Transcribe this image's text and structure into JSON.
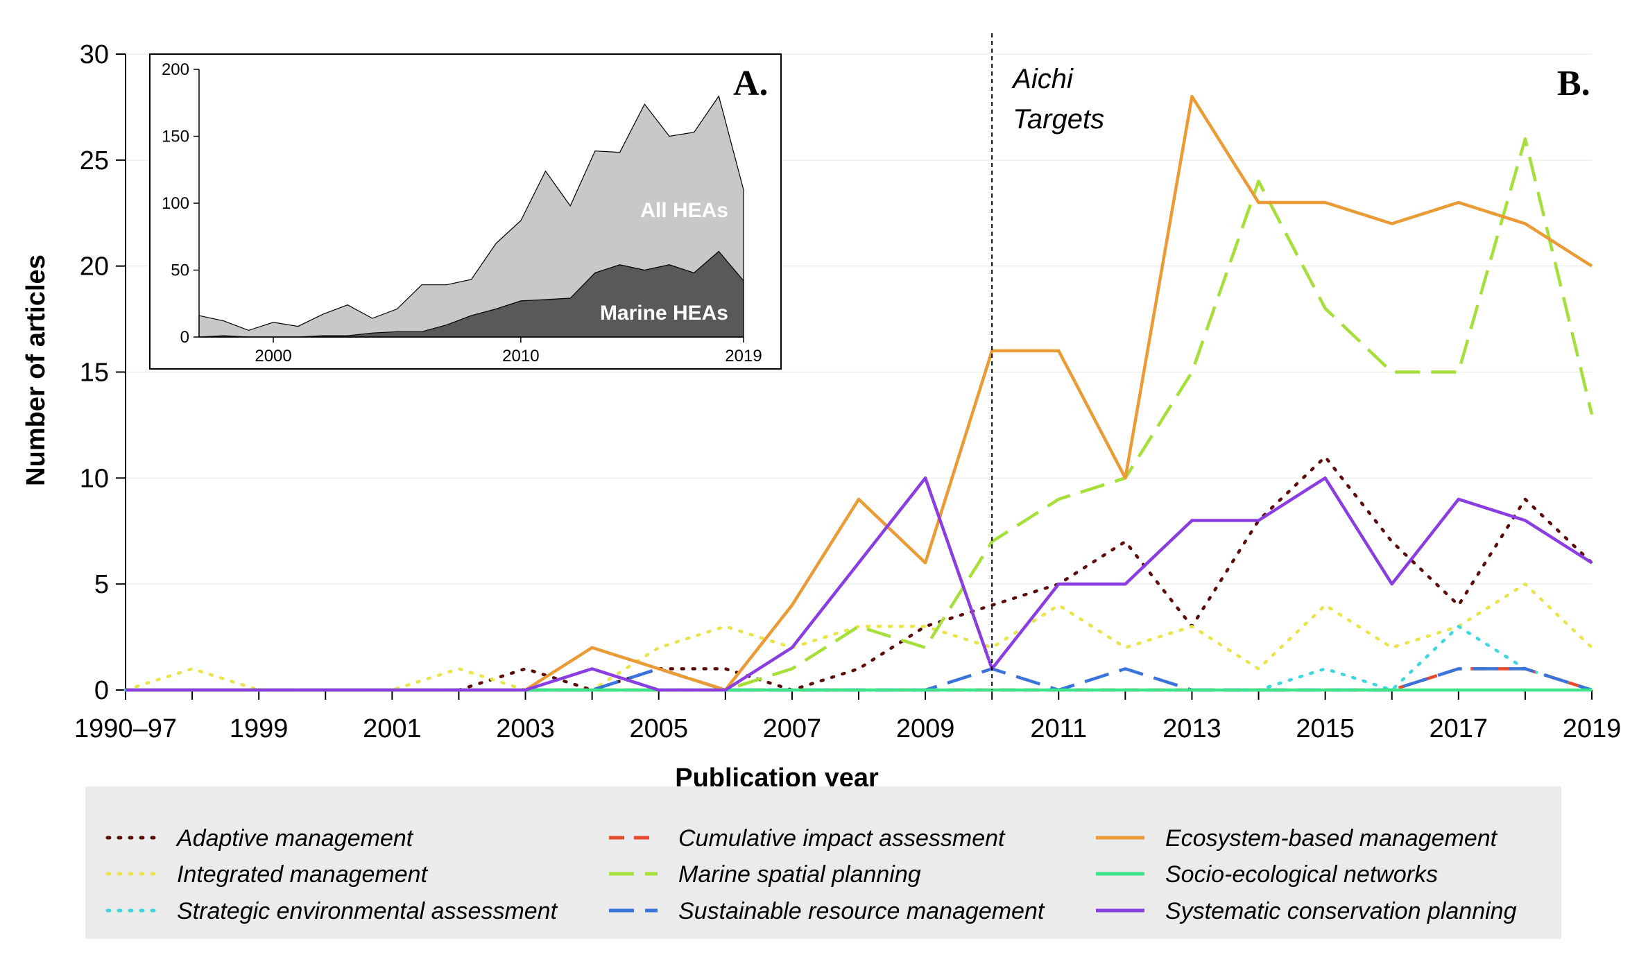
{
  "chart_data": [
    {
      "type": "line",
      "panel_label": "B.",
      "xlabel": "Publication year",
      "ylabel": "Number of articles",
      "ylim": [
        0,
        30
      ],
      "yticks": [
        0,
        5,
        10,
        15,
        20,
        25,
        30
      ],
      "categories": [
        "1990–97",
        "1998",
        "1999",
        "2000",
        "2001",
        "2002",
        "2003",
        "2004",
        "2005",
        "2006",
        "2007",
        "2008",
        "2009",
        "2010",
        "2011",
        "2012",
        "2013",
        "2014",
        "2015",
        "2016",
        "2017",
        "2018",
        "2019"
      ],
      "xtick_labels": [
        "1990–97",
        "1999",
        "2001",
        "2003",
        "2005",
        "2007",
        "2009",
        "2011",
        "2013",
        "2015",
        "2017",
        "2019"
      ],
      "xtick_indices": [
        0,
        2,
        4,
        6,
        8,
        10,
        12,
        14,
        16,
        18,
        20,
        22
      ],
      "annotation": {
        "text_line1": "Aichi",
        "text_line2": "Targets",
        "at_category": "2010"
      },
      "legend_position": "bottom",
      "series": [
        {
          "name": "Adaptive management",
          "color": "#5c0a0a",
          "dash": "dotted",
          "values": [
            0,
            0,
            0,
            0,
            0,
            0,
            1,
            0,
            1,
            1,
            0,
            1,
            3,
            4,
            5,
            7,
            3,
            8,
            11,
            7,
            4,
            9,
            6
          ]
        },
        {
          "name": "Integrated management",
          "color": "#e8e44a",
          "dash": "dotted",
          "values": [
            0,
            1,
            0,
            0,
            0,
            1,
            0,
            0,
            2,
            3,
            2,
            3,
            3,
            2,
            4,
            2,
            3,
            1,
            4,
            2,
            3,
            5,
            2
          ]
        },
        {
          "name": "Strategic environmental assessment",
          "color": "#3ed7e0",
          "dash": "dotted",
          "values": [
            0,
            0,
            0,
            0,
            0,
            0,
            0,
            0,
            0,
            0,
            0,
            0,
            0,
            0,
            0,
            0,
            0,
            0,
            1,
            0,
            3,
            1,
            0
          ]
        },
        {
          "name": "Cumulative impact assessment",
          "color": "#e64a2e",
          "dash": "dashed",
          "values": [
            0,
            0,
            0,
            0,
            0,
            0,
            0,
            0,
            0,
            0,
            0,
            0,
            0,
            0,
            0,
            0,
            0,
            0,
            0,
            0,
            1,
            1,
            0
          ]
        },
        {
          "name": "Marine spatial planning",
          "color": "#a6df3a",
          "dash": "longdash",
          "values": [
            0,
            0,
            0,
            0,
            0,
            0,
            0,
            0,
            0,
            0,
            1,
            3,
            2,
            7,
            9,
            10,
            15,
            24,
            18,
            15,
            15,
            26,
            13
          ]
        },
        {
          "name": "Sustainable resource management",
          "color": "#3a73d9",
          "dash": "longdash",
          "values": [
            0,
            0,
            0,
            0,
            0,
            0,
            0,
            0,
            1,
            0,
            0,
            0,
            0,
            1,
            0,
            1,
            0,
            0,
            0,
            0,
            1,
            1,
            0
          ]
        },
        {
          "name": "Ecosystem-based management",
          "color": "#ea9b35",
          "dash": "solid",
          "values": [
            0,
            0,
            0,
            0,
            0,
            0,
            0,
            2,
            1,
            0,
            4,
            9,
            6,
            16,
            16,
            10,
            28,
            23,
            23,
            22,
            23,
            22,
            20
          ]
        },
        {
          "name": "Socio-ecological networks",
          "color": "#3be38a",
          "dash": "solid",
          "values": [
            0,
            0,
            0,
            0,
            0,
            0,
            0,
            0,
            0,
            0,
            0,
            0,
            0,
            0,
            0,
            0,
            0,
            0,
            0,
            0,
            0,
            0,
            0
          ]
        },
        {
          "name": "Systematic conservation planning",
          "color": "#8a3de0",
          "dash": "solid",
          "values": [
            0,
            0,
            0,
            0,
            0,
            0,
            0,
            1,
            0,
            0,
            2,
            6,
            10,
            1,
            5,
            5,
            8,
            8,
            10,
            5,
            9,
            8,
            6
          ]
        }
      ]
    },
    {
      "type": "area",
      "panel_label": "A.",
      "x": [
        1997,
        1998,
        1999,
        2000,
        2001,
        2002,
        2003,
        2004,
        2005,
        2006,
        2007,
        2008,
        2009,
        2010,
        2011,
        2012,
        2013,
        2014,
        2015,
        2016,
        2017,
        2018,
        2019
      ],
      "xlim": [
        1997,
        2019
      ],
      "xtick_labels": [
        "2000",
        "2010",
        "2019"
      ],
      "xtick_values": [
        2000,
        2010,
        2019
      ],
      "ylim": [
        0,
        200
      ],
      "yticks": [
        0,
        50,
        100,
        150,
        200
      ],
      "series": [
        {
          "name": "All HEAs",
          "color": "#c8c8c8",
          "values": [
            16,
            12,
            5,
            11,
            8,
            17,
            24,
            14,
            21,
            39,
            39,
            43,
            70,
            87,
            124,
            98,
            139,
            138,
            174,
            150,
            153,
            180,
            110
          ]
        },
        {
          "name": "Marine HEAs",
          "color": "#595959",
          "values": [
            0,
            1,
            0,
            0,
            0,
            1,
            1,
            3,
            4,
            4,
            9,
            16,
            21,
            27,
            28,
            29,
            48,
            54,
            50,
            54,
            48,
            64,
            42
          ]
        }
      ]
    }
  ]
}
